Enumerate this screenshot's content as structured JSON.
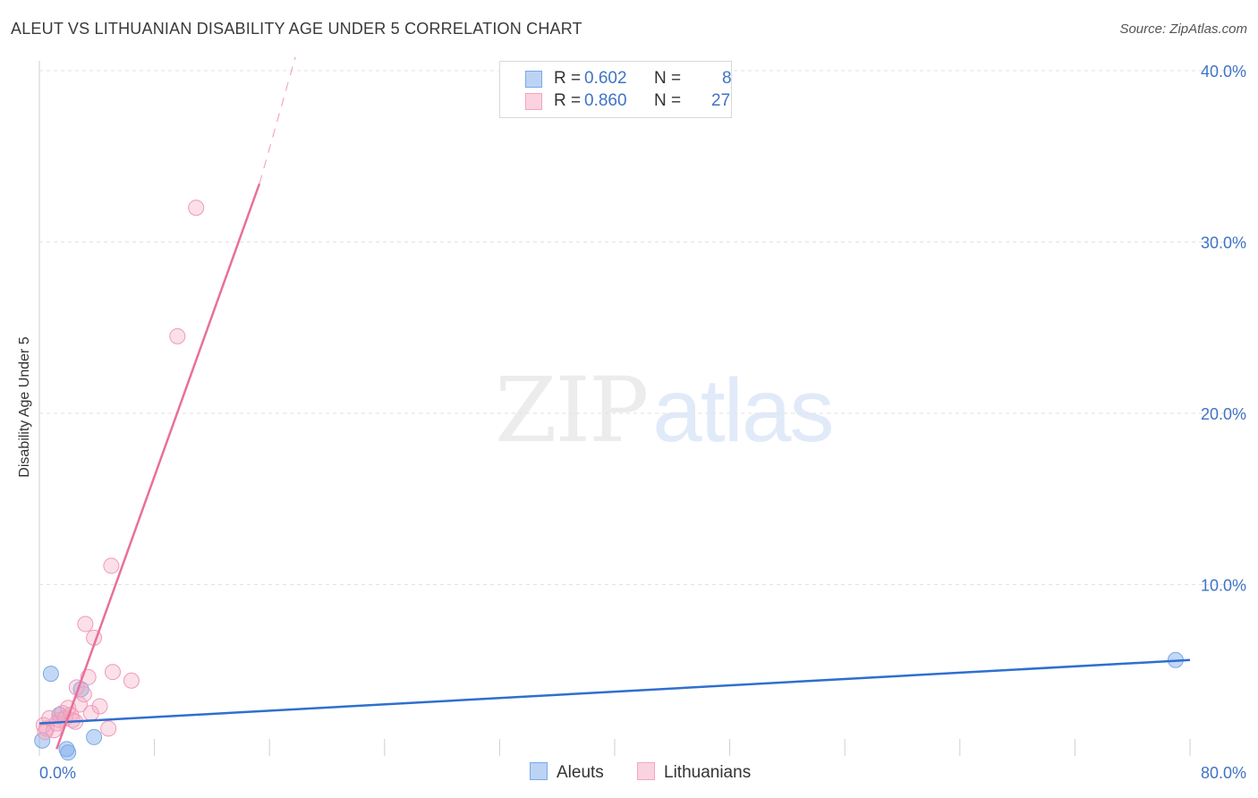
{
  "title": "ALEUT VS LITHUANIAN DISABILITY AGE UNDER 5 CORRELATION CHART",
  "source": "Source: ZipAtlas.com",
  "watermark": {
    "left": "ZIP",
    "right": "atlas"
  },
  "legend": {
    "rows": [
      {
        "r_label": "R = ",
        "r_value": "0.602",
        "n_label": "N = ",
        "n_value": "8"
      },
      {
        "r_label": "R = ",
        "r_value": "0.860",
        "n_label": "N = ",
        "n_value": "27"
      }
    ]
  },
  "chart_data": {
    "type": "scatter",
    "title": "ALEUT VS LITHUANIAN DISABILITY AGE UNDER 5 CORRELATION CHART",
    "xlabel": "",
    "ylabel": "Disability Age Under 5",
    "xlim": [
      0,
      80
    ],
    "ylim": [
      0,
      40
    ],
    "x_tick_labels": [
      "0.0%",
      "80.0%"
    ],
    "y_tick_labels": [
      "10.0%",
      "20.0%",
      "30.0%",
      "40.0%"
    ],
    "y_ticks": [
      10,
      20,
      30,
      40
    ],
    "grid": true,
    "colors": {
      "aleuts": "#7aa8e8",
      "lithuanians": "#f4a6bf",
      "aleut_line": "#2f6fcf",
      "lith_line": "#e8709a",
      "tick_text": "#3f73c6"
    },
    "series": [
      {
        "name": "Aleuts",
        "r": 0.602,
        "n": 8,
        "points": [
          [
            0.2,
            0.9
          ],
          [
            0.8,
            4.8
          ],
          [
            1.4,
            2.4
          ],
          [
            1.9,
            0.4
          ],
          [
            2.0,
            0.2
          ],
          [
            2.9,
            3.9
          ],
          [
            3.8,
            1.1
          ],
          [
            79.0,
            5.6
          ]
        ],
        "trend": {
          "x": [
            0,
            80
          ],
          "y": [
            1.9,
            5.6
          ],
          "dashed_extension": false
        }
      },
      {
        "name": "Lithuanians",
        "r": 0.86,
        "n": 27,
        "points": [
          [
            0.3,
            1.8
          ],
          [
            0.5,
            1.6
          ],
          [
            0.7,
            2.2
          ],
          [
            1.0,
            1.5
          ],
          [
            1.2,
            1.9
          ],
          [
            1.4,
            2.1
          ],
          [
            1.6,
            2.5
          ],
          [
            1.8,
            2.2
          ],
          [
            2.0,
            2.8
          ],
          [
            2.2,
            2.4
          ],
          [
            2.3,
            2.1
          ],
          [
            2.5,
            2.0
          ],
          [
            2.6,
            4.0
          ],
          [
            2.8,
            3.0
          ],
          [
            3.1,
            3.6
          ],
          [
            3.2,
            7.7
          ],
          [
            3.4,
            4.6
          ],
          [
            3.6,
            2.5
          ],
          [
            3.8,
            6.9
          ],
          [
            4.2,
            2.9
          ],
          [
            4.8,
            1.6
          ],
          [
            5.0,
            11.1
          ],
          [
            5.1,
            4.9
          ],
          [
            6.4,
            4.4
          ],
          [
            9.6,
            24.5
          ],
          [
            10.9,
            32.0
          ],
          [
            0.4,
            1.4
          ]
        ],
        "trend": {
          "x": [
            1.2,
            15.3
          ],
          "y": [
            0.4,
            33.4
          ],
          "dashed_x": [
            15.3,
            17.8
          ],
          "dashed_y": [
            33.4,
            40.8
          ]
        }
      }
    ]
  },
  "bottom_legend": [
    {
      "label": "Aleuts"
    },
    {
      "label": "Lithuanians"
    }
  ]
}
